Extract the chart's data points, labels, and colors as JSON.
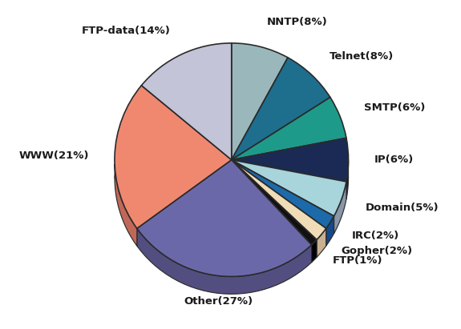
{
  "labels": [
    "NNTP",
    "Telnet",
    "SMTP",
    "IP",
    "Domain",
    "IRC",
    "Gopher",
    "FTP",
    "Other",
    "WWW",
    "FTP-data"
  ],
  "sizes": [
    8,
    8,
    6,
    6,
    5,
    2,
    2,
    1,
    27,
    21,
    14
  ],
  "colors": [
    "#9ab8bc",
    "#1e6e8e",
    "#1e9a8a",
    "#1a2a54",
    "#a8d4dc",
    "#1c6aaa",
    "#f0ddb8",
    "#111111",
    "#6b68aa",
    "#f08870",
    "#c4c4d8"
  ],
  "label_display": [
    "NNTP(8%)",
    "Telnet(8%)",
    "SMTP(6%)",
    "IP(6%)",
    "Domain(5%)",
    "IRC(2%)",
    "Gopher(2%)",
    "FTP(1%)",
    "Other(27%)",
    "WWW(21%)",
    "FTP-data(14%)"
  ],
  "startangle": 90,
  "background_color": "#ffffff",
  "edge_color": "#2a2a2a",
  "edge_width": 1.2,
  "label_fontsize": 9.5,
  "label_color": "#1a1a1a",
  "shadow_colors": [
    "#7a76a8",
    "#5e5c88",
    "#524f80",
    "#1a1948",
    "#8898a8",
    "#144a88",
    "#c8b090",
    "#000000",
    "#524f80",
    "#c06858",
    "#9898b8"
  ]
}
